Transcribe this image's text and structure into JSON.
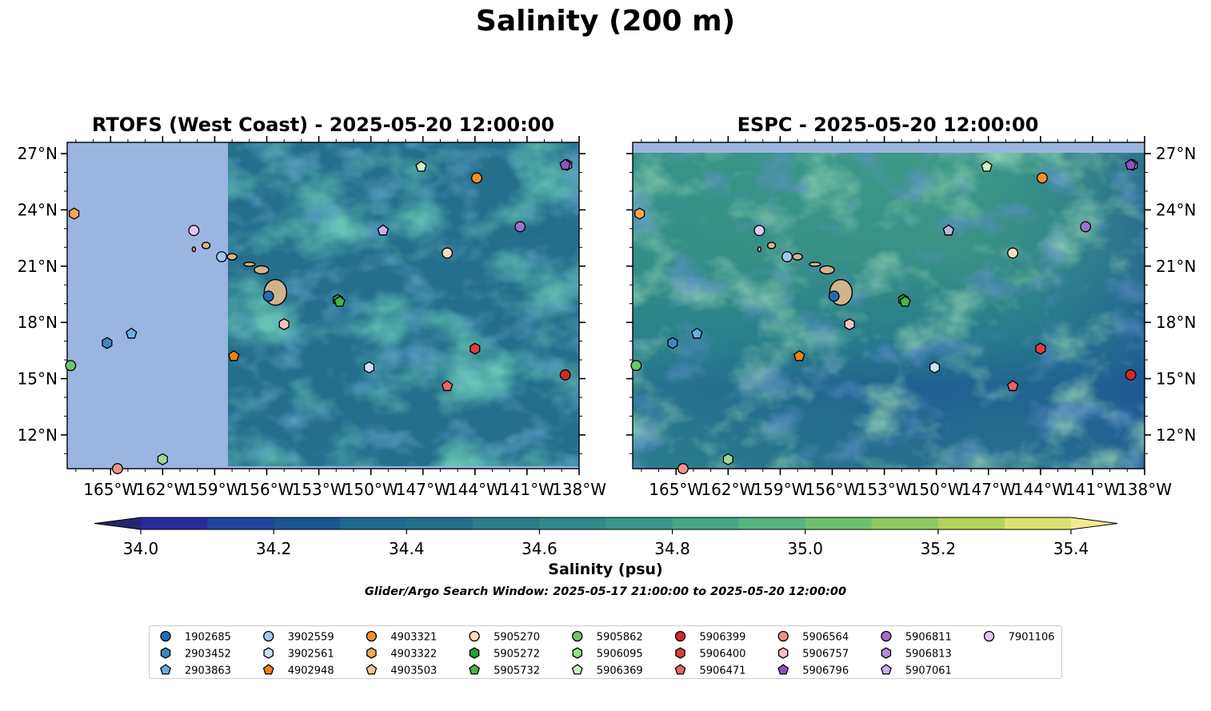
{
  "title": "Salinity (200 m)",
  "panels": [
    {
      "title": "RTOFS (West Coast) - 2025-05-20 12:00:00"
    },
    {
      "title": "ESPC - 2025-05-20 12:00:00"
    }
  ],
  "colorbar": {
    "label": "Salinity (psu)",
    "range": [
      34.0,
      35.4
    ],
    "ticks": [
      "34.0",
      "34.2",
      "34.4",
      "34.6",
      "34.8",
      "35.0",
      "35.2",
      "35.4"
    ],
    "level_step": 0.1,
    "colors": [
      "#27256c",
      "#2a2a9b",
      "#1f459a",
      "#1b5592",
      "#1d6a8e",
      "#246f8c",
      "#2a7d8b",
      "#30898a",
      "#369888",
      "#45a788",
      "#55b57e",
      "#6ec06e",
      "#8fca5f",
      "#b5d45a",
      "#dbe170",
      "#f4ea8d"
    ]
  },
  "note": "Glider/Argo Search Window: 2025-05-17 21:00:00 to 2025-05-20 12:00:00",
  "colors": {
    "land": "#d2b48c",
    "mask": "#9ab5e0",
    "marker_edge": "#000000"
  },
  "chart_data": [
    {
      "type": "scatter",
      "title": "RTOFS (West Coast) - 2025-05-20 12:00:00",
      "x_ticks": [
        "165°W",
        "162°W",
        "159°W",
        "156°W",
        "153°W",
        "150°W",
        "147°W",
        "144°W",
        "141°W",
        "138°W"
      ],
      "y_ticks": [
        "12°N",
        "15°N",
        "18°N",
        "21°N",
        "24°N",
        "27°N"
      ],
      "xlim": [
        -167.5,
        -138.0
      ],
      "ylim": [
        10.2,
        27.6
      ],
      "model_data_lon_min": -158.3,
      "series": [
        {
          "name": "1902685",
          "points": [
            [
              -155.9,
              19.4
            ]
          ]
        },
        {
          "name": "3902559",
          "points": [
            [
              -158.6,
              21.5
            ]
          ]
        },
        {
          "name": "4903321",
          "points": [
            [
              -143.9,
              25.7
            ]
          ]
        },
        {
          "name": "5905270",
          "points": [
            [
              -145.6,
              21.7
            ]
          ]
        },
        {
          "name": "5905862",
          "points": [
            [
              -167.3,
              15.7
            ]
          ]
        },
        {
          "name": "5906399",
          "points": [
            [
              -138.8,
              15.2
            ]
          ]
        },
        {
          "name": "5906564",
          "points": [
            [
              -164.6,
              10.2
            ]
          ]
        },
        {
          "name": "5906811",
          "points": [
            [
              -141.4,
              23.1
            ]
          ]
        },
        {
          "name": "7901106",
          "points": [
            [
              -160.2,
              22.9
            ]
          ]
        },
        {
          "name": "2903452",
          "points": [
            [
              -165.2,
              16.9
            ]
          ]
        },
        {
          "name": "3902561",
          "points": [
            [
              -150.1,
              15.6
            ]
          ]
        },
        {
          "name": "4903322",
          "points": [
            [
              -167.1,
              23.8
            ]
          ]
        },
        {
          "name": "5905272",
          "points": [
            [
              -151.9,
              19.2
            ]
          ]
        },
        {
          "name": "5906095",
          "points": [
            [
              -162.0,
              10.7
            ]
          ]
        },
        {
          "name": "5906400",
          "points": [
            [
              -144.0,
              16.6
            ]
          ]
        },
        {
          "name": "5906757",
          "points": [
            [
              -155.0,
              17.9
            ]
          ]
        },
        {
          "name": "5906813",
          "points": [
            [
              -138.7,
              26.4
            ]
          ]
        },
        {
          "name": "2903863",
          "points": [
            [
              -163.8,
              17.4
            ]
          ]
        },
        {
          "name": "4902948",
          "points": [
            [
              -157.9,
              16.2
            ]
          ]
        },
        {
          "name": "4903503",
          "points": [
            [
              -149.3,
              22.9
            ]
          ]
        },
        {
          "name": "5905732",
          "points": [
            [
              -151.8,
              19.1
            ]
          ]
        },
        {
          "name": "5906369",
          "points": [
            [
              -147.1,
              26.3
            ]
          ]
        },
        {
          "name": "5906471",
          "points": [
            [
              -145.6,
              14.6
            ]
          ]
        },
        {
          "name": "5906796",
          "points": [
            [
              -138.8,
              26.4
            ]
          ]
        },
        {
          "name": "5907061",
          "points": [
            [
              -149.3,
              22.9
            ]
          ]
        }
      ]
    },
    {
      "type": "scatter",
      "title": "ESPC - 2025-05-20 12:00:00",
      "x_ticks": [
        "165°W",
        "162°W",
        "159°W",
        "156°W",
        "153°W",
        "150°W",
        "147°W",
        "144°W",
        "141°W",
        "138°W"
      ],
      "y_ticks": [
        "12°N",
        "15°N",
        "18°N",
        "21°N",
        "24°N",
        "27°N"
      ],
      "xlim": [
        -167.5,
        -138.0
      ],
      "ylim": [
        10.2,
        27.6
      ],
      "model_data_lat_max": 27.0,
      "series": [
        {
          "name": "1902685",
          "points": [
            [
              -155.9,
              19.4
            ]
          ]
        },
        {
          "name": "3902559",
          "points": [
            [
              -158.6,
              21.5
            ]
          ]
        },
        {
          "name": "4903321",
          "points": [
            [
              -143.9,
              25.7
            ]
          ]
        },
        {
          "name": "5905270",
          "points": [
            [
              -145.6,
              21.7
            ]
          ]
        },
        {
          "name": "5905862",
          "points": [
            [
              -167.3,
              15.7
            ]
          ]
        },
        {
          "name": "5906399",
          "points": [
            [
              -138.8,
              15.2
            ]
          ]
        },
        {
          "name": "5906564",
          "points": [
            [
              -164.6,
              10.2
            ]
          ]
        },
        {
          "name": "5906811",
          "points": [
            [
              -141.4,
              23.1
            ]
          ]
        },
        {
          "name": "7901106",
          "points": [
            [
              -160.2,
              22.9
            ]
          ]
        },
        {
          "name": "2903452",
          "points": [
            [
              -165.2,
              16.9
            ]
          ]
        },
        {
          "name": "3902561",
          "points": [
            [
              -150.1,
              15.6
            ]
          ]
        },
        {
          "name": "4903322",
          "points": [
            [
              -167.1,
              23.8
            ]
          ]
        },
        {
          "name": "5905272",
          "points": [
            [
              -151.9,
              19.2
            ]
          ]
        },
        {
          "name": "5906095",
          "points": [
            [
              -162.0,
              10.7
            ]
          ]
        },
        {
          "name": "5906400",
          "points": [
            [
              -144.0,
              16.6
            ]
          ]
        },
        {
          "name": "5906757",
          "points": [
            [
              -155.0,
              17.9
            ]
          ]
        },
        {
          "name": "5906813",
          "points": [
            [
              -138.7,
              26.4
            ]
          ]
        },
        {
          "name": "2903863",
          "points": [
            [
              -163.8,
              17.4
            ]
          ]
        },
        {
          "name": "4902948",
          "points": [
            [
              -157.9,
              16.2
            ]
          ]
        },
        {
          "name": "4903503",
          "points": [
            [
              -149.3,
              22.9
            ]
          ]
        },
        {
          "name": "5905732",
          "points": [
            [
              -151.8,
              19.1
            ]
          ]
        },
        {
          "name": "5906369",
          "points": [
            [
              -147.1,
              26.3
            ]
          ]
        },
        {
          "name": "5906471",
          "points": [
            [
              -145.6,
              14.6
            ]
          ]
        },
        {
          "name": "5906796",
          "points": [
            [
              -138.8,
              26.4
            ]
          ]
        },
        {
          "name": "5907061",
          "points": [
            [
              -149.3,
              22.9
            ]
          ]
        }
      ]
    }
  ],
  "legend": {
    "entries": [
      {
        "id": "1902685",
        "marker": "circle",
        "color": "#1f6fb4"
      },
      {
        "id": "2903452",
        "marker": "hexagon",
        "color": "#3f86c1"
      },
      {
        "id": "2903863",
        "marker": "pentagon",
        "color": "#6aaee0"
      },
      {
        "id": "3902559",
        "marker": "circle",
        "color": "#9dcbee"
      },
      {
        "id": "3902561",
        "marker": "hexagon",
        "color": "#c8e2f7"
      },
      {
        "id": "4902948",
        "marker": "pentagon",
        "color": "#f07f13"
      },
      {
        "id": "4903321",
        "marker": "circle",
        "color": "#f58d2f"
      },
      {
        "id": "4903322",
        "marker": "hexagon",
        "color": "#f7a559"
      },
      {
        "id": "4903503",
        "marker": "pentagon",
        "color": "#f9c08e"
      },
      {
        "id": "5905270",
        "marker": "circle",
        "color": "#fbdcbf"
      },
      {
        "id": "5905272",
        "marker": "hexagon",
        "color": "#2a9b3b"
      },
      {
        "id": "5905732",
        "marker": "pentagon",
        "color": "#48b449"
      },
      {
        "id": "5905862",
        "marker": "circle",
        "color": "#6cc66a"
      },
      {
        "id": "5906095",
        "marker": "hexagon",
        "color": "#9bdb8f"
      },
      {
        "id": "5906369",
        "marker": "pentagon",
        "color": "#cdf2c3"
      },
      {
        "id": "5906399",
        "marker": "circle",
        "color": "#d62728"
      },
      {
        "id": "5906400",
        "marker": "hexagon",
        "color": "#e03c3c"
      },
      {
        "id": "5906471",
        "marker": "pentagon",
        "color": "#ea6464"
      },
      {
        "id": "5906564",
        "marker": "circle",
        "color": "#f09090"
      },
      {
        "id": "5906757",
        "marker": "hexagon",
        "color": "#f7c1c1"
      },
      {
        "id": "5906796",
        "marker": "pentagon",
        "color": "#8e53b8"
      },
      {
        "id": "5906811",
        "marker": "circle",
        "color": "#a070c8"
      },
      {
        "id": "5906813",
        "marker": "hexagon",
        "color": "#b28ed6"
      },
      {
        "id": "5907061",
        "marker": "pentagon",
        "color": "#c9b0e6"
      },
      {
        "id": "7901106",
        "marker": "circle",
        "color": "#e2c6f5"
      }
    ]
  }
}
